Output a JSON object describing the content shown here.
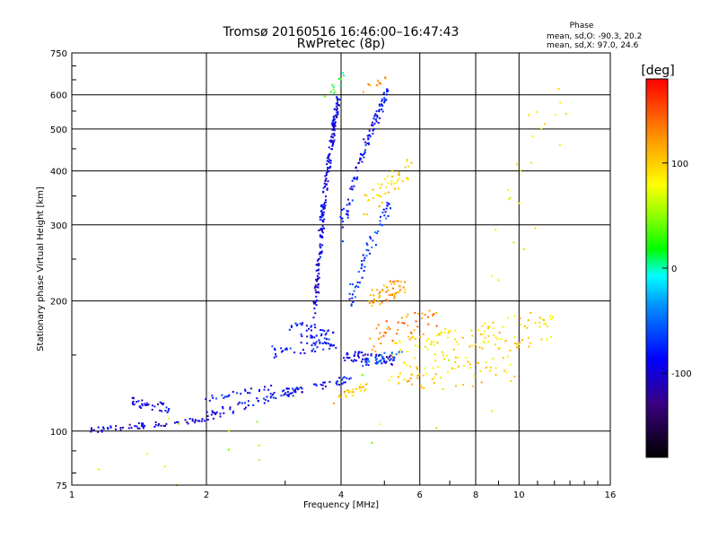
{
  "chart_data": {
    "type": "scatter",
    "title": "Tromsø 20160516 16:46:00–16:47:43",
    "subtitle": "RwPretec (8p)",
    "xlabel": "Frequency [MHz]",
    "ylabel": "Stationary phase Virtual Height [km]",
    "x_scale": "log",
    "y_scale": "log",
    "xlim": [
      1,
      16
    ],
    "ylim": [
      75,
      750
    ],
    "x_ticks": [
      1,
      2,
      4,
      6,
      8,
      10,
      16
    ],
    "y_ticks": [
      75,
      100,
      200,
      300,
      400,
      500,
      600,
      750
    ],
    "grid": true,
    "phase_box": {
      "title": "Phase",
      "line_o": "mean, sd,O: -90.3, 20.2",
      "line_x": "mean, sd,X:  97.0, 24.6"
    },
    "colorbar": {
      "label": "[deg]",
      "range": [
        -180,
        180
      ],
      "ticks": [
        100,
        0,
        -100
      ],
      "colormap": "rainbow"
    },
    "traces": [
      {
        "x_range": [
          1.08,
          1.9
        ],
        "y": [
          100,
          106
        ],
        "phase": -98,
        "n": 55,
        "spread": 1.5
      },
      {
        "x_range": [
          1.9,
          3.2
        ],
        "y": [
          106,
          125
        ],
        "phase": -92,
        "n": 70,
        "spread": 2.5
      },
      {
        "x_range": [
          3.0,
          4.2
        ],
        "y": [
          122,
          132
        ],
        "phase": -88,
        "n": 40,
        "spread": 2.5
      },
      {
        "x_range": [
          1.35,
          1.65
        ],
        "y": [
          117,
          113
        ],
        "phase": -95,
        "n": 35,
        "spread": 3
      },
      {
        "x_range": [
          1.95,
          2.85
        ],
        "y": [
          118,
          127
        ],
        "phase": -85,
        "n": 25,
        "spread": 2
      },
      {
        "x_range": [
          2.8,
          3.9
        ],
        "y": [
          152,
          160
        ],
        "phase": -80,
        "n": 40,
        "spread": 5
      },
      {
        "x_range": [
          3.1,
          3.9
        ],
        "y": [
          175,
          162
        ],
        "phase": -88,
        "n": 45,
        "spread": 7
      },
      {
        "x_range": [
          3.5,
          3.95
        ],
        "y": [
          185,
          590
        ],
        "phase": -97,
        "n": 210,
        "spread": 14
      },
      {
        "x_range": [
          4.0,
          5.2
        ],
        "y": [
          150,
          146
        ],
        "phase": -95,
        "n": 60,
        "spread": 4
      },
      {
        "x_range": [
          4.0,
          5.1
        ],
        "y": [
          290,
          610
        ],
        "phase": -85,
        "n": 110,
        "spread": 18
      },
      {
        "x_range": [
          4.2,
          5.2
        ],
        "y": [
          200,
          340
        ],
        "phase": -70,
        "n": 60,
        "spread": 15
      },
      {
        "x_range": [
          4.5,
          5.8
        ],
        "y": [
          330,
          410
        ],
        "phase": 95,
        "n": 45,
        "spread": 25
      },
      {
        "x_range": [
          4.6,
          5.6
        ],
        "y": [
          200,
          220
        ],
        "phase": 120,
        "n": 55,
        "spread": 10
      },
      {
        "x_range": [
          3.8,
          4.6
        ],
        "y": [
          118,
          128
        ],
        "phase": 100,
        "n": 25,
        "spread": 3
      },
      {
        "x_range": [
          5.2,
          12.0
        ],
        "y": [
          145,
          175
        ],
        "phase": 95,
        "n": 160,
        "spread": 18
      },
      {
        "x_range": [
          5.0,
          10.0
        ],
        "y": [
          125,
          138
        ],
        "phase": 100,
        "n": 35,
        "spread": 8
      },
      {
        "x_range": [
          4.5,
          6.5
        ],
        "y": [
          160,
          185
        ],
        "phase": 130,
        "n": 45,
        "spread": 12
      },
      {
        "x_range": [
          4.5,
          5.5
        ],
        "y": [
          145,
          150
        ],
        "phase": -60,
        "n": 30,
        "spread": 4
      },
      {
        "x_range": [
          8.3,
          13.0
        ],
        "y": [
          190,
          600
        ],
        "phase": 75,
        "n": 25,
        "spread": 150
      },
      {
        "x_range": [
          3.7,
          4.1
        ],
        "y": [
          600,
          660
        ],
        "phase": 20,
        "n": 12,
        "spread": 20
      },
      {
        "x_range": [
          4.5,
          5.0
        ],
        "y": [
          620,
          650
        ],
        "phase": 120,
        "n": 10,
        "spread": 15
      },
      {
        "x_range": [
          1.15,
          8.0
        ],
        "y": [
          80,
          128
        ],
        "phase": 60,
        "n": 18,
        "spread": 25
      }
    ]
  }
}
